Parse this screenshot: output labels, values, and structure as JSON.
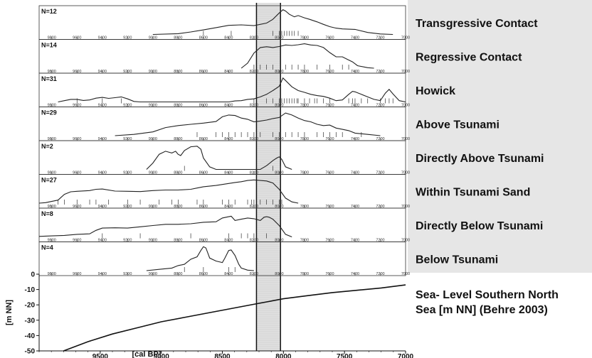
{
  "chart_data": {
    "type": "line",
    "x_reversed": true,
    "highlight_band": {
      "x_from": 8180,
      "x_to": 7990
    },
    "panel_xlim": [
      9900,
      7000
    ],
    "panel_ticks": [
      9800,
      9600,
      9400,
      9200,
      9000,
      8800,
      8600,
      8400,
      8200,
      8000,
      7800,
      7600,
      7400,
      7200,
      7000
    ],
    "panels": [
      {
        "n_label": "N=12",
        "label": "Transgressive Contact",
        "curve": [
          [
            9000,
            0.0
          ],
          [
            8800,
            0.03
          ],
          [
            8700,
            0.1
          ],
          [
            8600,
            0.18
          ],
          [
            8500,
            0.27
          ],
          [
            8400,
            0.36
          ],
          [
            8300,
            0.38
          ],
          [
            8200,
            0.35
          ],
          [
            8100,
            0.45
          ],
          [
            8050,
            0.6
          ],
          [
            8000,
            0.85
          ],
          [
            7970,
            0.98
          ],
          [
            7950,
            0.93
          ],
          [
            7920,
            0.8
          ],
          [
            7880,
            0.7
          ],
          [
            7850,
            0.75
          ],
          [
            7800,
            0.66
          ],
          [
            7760,
            0.6
          ],
          [
            7700,
            0.5
          ],
          [
            7650,
            0.4
          ],
          [
            7600,
            0.31
          ],
          [
            7550,
            0.25
          ],
          [
            7500,
            0.22
          ],
          [
            7400,
            0.2
          ],
          [
            7300,
            0.08
          ],
          [
            7200,
            0.02
          ],
          [
            7100,
            0.0
          ]
        ],
        "rug": [
          8600,
          8380,
          8050,
          8000,
          7980,
          7960,
          7940,
          7920,
          7900,
          7880,
          7850
        ]
      },
      {
        "n_label": "N=14",
        "label": "Regressive Contact",
        "curve": [
          [
            8300,
            0.0
          ],
          [
            8250,
            0.2
          ],
          [
            8200,
            0.6
          ],
          [
            8150,
            0.82
          ],
          [
            8100,
            0.85
          ],
          [
            8050,
            0.82
          ],
          [
            8000,
            0.86
          ],
          [
            7950,
            0.92
          ],
          [
            7900,
            0.9
          ],
          [
            7850,
            0.93
          ],
          [
            7800,
            0.97
          ],
          [
            7750,
            0.92
          ],
          [
            7700,
            0.9
          ],
          [
            7650,
            0.82
          ],
          [
            7600,
            0.62
          ],
          [
            7550,
            0.45
          ],
          [
            7500,
            0.45
          ],
          [
            7460,
            0.35
          ],
          [
            7420,
            0.25
          ],
          [
            7380,
            0.1
          ],
          [
            7300,
            0.02
          ],
          [
            7250,
            0.0
          ]
        ],
        "rug": [
          8200,
          8150,
          8100,
          8050,
          7950,
          7900,
          7850,
          7800,
          7700,
          7600,
          7500,
          7450
        ]
      },
      {
        "n_label": "N=31",
        "label": "Howick",
        "curve": [
          [
            9750,
            0.0
          ],
          [
            9700,
            0.05
          ],
          [
            9650,
            0.1
          ],
          [
            9600,
            0.1
          ],
          [
            9550,
            0.06
          ],
          [
            9500,
            0.08
          ],
          [
            9450,
            0.15
          ],
          [
            9400,
            0.18
          ],
          [
            9350,
            0.14
          ],
          [
            9300,
            0.17
          ],
          [
            9250,
            0.2
          ],
          [
            9200,
            0.12
          ],
          [
            9150,
            0.02
          ],
          [
            9100,
            0.0
          ],
          [
            8400,
            0.0
          ],
          [
            8350,
            0.04
          ],
          [
            8300,
            0.05
          ],
          [
            8250,
            0.1
          ],
          [
            8200,
            0.12
          ],
          [
            8150,
            0.2
          ],
          [
            8100,
            0.3
          ],
          [
            8050,
            0.45
          ],
          [
            8000,
            0.62
          ],
          [
            7970,
            0.95
          ],
          [
            7950,
            0.85
          ],
          [
            7900,
            0.6
          ],
          [
            7850,
            0.45
          ],
          [
            7800,
            0.38
          ],
          [
            7750,
            0.3
          ],
          [
            7700,
            0.25
          ],
          [
            7650,
            0.22
          ],
          [
            7600,
            0.15
          ],
          [
            7550,
            0.05
          ],
          [
            7500,
            0.08
          ],
          [
            7450,
            0.3
          ],
          [
            7420,
            0.42
          ],
          [
            7400,
            0.4
          ],
          [
            7350,
            0.3
          ],
          [
            7300,
            0.2
          ],
          [
            7250,
            0.1
          ],
          [
            7200,
            0.05
          ],
          [
            7160,
            0.35
          ],
          [
            7130,
            0.5
          ],
          [
            7100,
            0.32
          ],
          [
            7050,
            0.05
          ],
          [
            7000,
            0.0
          ]
        ],
        "rug": [
          9600,
          9400,
          9250,
          8200,
          8100,
          8050,
          8000,
          7980,
          7960,
          7940,
          7920,
          7900,
          7880,
          7860,
          7850,
          7800,
          7760,
          7720,
          7700,
          7650,
          7600,
          7450,
          7420,
          7400,
          7350,
          7300,
          7200,
          7160,
          7130,
          7100
        ]
      },
      {
        "n_label": "N=29",
        "label": "Above Tsunami",
        "curve": [
          [
            9300,
            0.0
          ],
          [
            9150,
            0.05
          ],
          [
            9000,
            0.15
          ],
          [
            8900,
            0.32
          ],
          [
            8800,
            0.4
          ],
          [
            8700,
            0.45
          ],
          [
            8600,
            0.5
          ],
          [
            8500,
            0.56
          ],
          [
            8450,
            0.75
          ],
          [
            8400,
            0.82
          ],
          [
            8350,
            0.8
          ],
          [
            8300,
            0.7
          ],
          [
            8250,
            0.65
          ],
          [
            8200,
            0.55
          ],
          [
            8150,
            0.58
          ],
          [
            8100,
            0.62
          ],
          [
            8050,
            0.68
          ],
          [
            8000,
            0.72
          ],
          [
            7950,
            0.9
          ],
          [
            7900,
            0.82
          ],
          [
            7850,
            0.7
          ],
          [
            7800,
            0.6
          ],
          [
            7750,
            0.55
          ],
          [
            7700,
            0.45
          ],
          [
            7650,
            0.4
          ],
          [
            7600,
            0.42
          ],
          [
            7550,
            0.3
          ],
          [
            7500,
            0.25
          ],
          [
            7450,
            0.2
          ],
          [
            7400,
            0.1
          ],
          [
            7300,
            0.05
          ],
          [
            7200,
            0.0
          ]
        ],
        "rug": [
          8650,
          8500,
          8450,
          8400,
          8350,
          8300,
          8250,
          8200,
          8150,
          8050,
          8000,
          7950,
          7900,
          7850,
          7800,
          7700,
          7650,
          7600,
          7550,
          7500,
          7350
        ]
      },
      {
        "n_label": "N=2",
        "label": "Directly Above Tsunami",
        "curve": [
          [
            9050,
            0.0
          ],
          [
            9000,
            0.25
          ],
          [
            8950,
            0.6
          ],
          [
            8900,
            0.72
          ],
          [
            8850,
            0.65
          ],
          [
            8820,
            0.72
          ],
          [
            8800,
            0.6
          ],
          [
            8780,
            0.55
          ],
          [
            8750,
            0.75
          ],
          [
            8700,
            0.9
          ],
          [
            8650,
            0.92
          ],
          [
            8620,
            0.8
          ],
          [
            8600,
            0.45
          ],
          [
            8550,
            0.1
          ],
          [
            8500,
            0.0
          ],
          [
            8150,
            0.0
          ],
          [
            8100,
            0.15
          ],
          [
            8050,
            0.35
          ],
          [
            8020,
            0.45
          ],
          [
            8000,
            0.5
          ],
          [
            7980,
            0.4
          ],
          [
            7950,
            0.1
          ],
          [
            7900,
            0.0
          ]
        ],
        "rug": [
          8750,
          8050,
          7990
        ]
      },
      {
        "n_label": "N=27",
        "label": "Within Tsunami Sand",
        "curve": [
          [
            9900,
            0.0
          ],
          [
            9850,
            0.02
          ],
          [
            9750,
            0.12
          ],
          [
            9700,
            0.35
          ],
          [
            9650,
            0.45
          ],
          [
            9600,
            0.47
          ],
          [
            9500,
            0.5
          ],
          [
            9450,
            0.55
          ],
          [
            9400,
            0.56
          ],
          [
            9300,
            0.48
          ],
          [
            9200,
            0.47
          ],
          [
            9100,
            0.46
          ],
          [
            9000,
            0.5
          ],
          [
            8900,
            0.52
          ],
          [
            8800,
            0.52
          ],
          [
            8700,
            0.55
          ],
          [
            8650,
            0.6
          ],
          [
            8600,
            0.65
          ],
          [
            8500,
            0.7
          ],
          [
            8400,
            0.78
          ],
          [
            8350,
            0.82
          ],
          [
            8300,
            0.85
          ],
          [
            8250,
            0.9
          ],
          [
            8200,
            0.92
          ],
          [
            8150,
            0.9
          ],
          [
            8100,
            0.88
          ],
          [
            8050,
            0.8
          ],
          [
            8000,
            0.55
          ],
          [
            7950,
            0.2
          ],
          [
            7900,
            0.05
          ],
          [
            7850,
            0.0
          ]
        ],
        "rug": [
          9750,
          9700,
          9600,
          9500,
          9450,
          9350,
          9200,
          9100,
          8950,
          8850,
          8800,
          8650,
          8600,
          8450,
          8400,
          8350,
          8250,
          8220,
          8200,
          8150,
          8100,
          8050,
          8000,
          7980
        ]
      },
      {
        "n_label": "N=8",
        "label": "Directly Below Tsunami",
        "curve": [
          [
            9900,
            0.02
          ],
          [
            9800,
            0.04
          ],
          [
            9700,
            0.06
          ],
          [
            9600,
            0.1
          ],
          [
            9500,
            0.12
          ],
          [
            9450,
            0.26
          ],
          [
            9400,
            0.35
          ],
          [
            9300,
            0.36
          ],
          [
            9200,
            0.35
          ],
          [
            9100,
            0.4
          ],
          [
            9000,
            0.45
          ],
          [
            8900,
            0.5
          ],
          [
            8800,
            0.5
          ],
          [
            8700,
            0.52
          ],
          [
            8600,
            0.58
          ],
          [
            8500,
            0.6
          ],
          [
            8450,
            0.75
          ],
          [
            8400,
            0.8
          ],
          [
            8380,
            0.82
          ],
          [
            8350,
            0.65
          ],
          [
            8300,
            0.7
          ],
          [
            8250,
            0.75
          ],
          [
            8200,
            0.72
          ],
          [
            8150,
            0.65
          ],
          [
            8120,
            0.78
          ],
          [
            8100,
            0.8
          ],
          [
            8080,
            0.78
          ],
          [
            8050,
            0.7
          ],
          [
            8000,
            0.45
          ],
          [
            7950,
            0.1
          ],
          [
            7900,
            0.0
          ]
        ],
        "rug": [
          9400,
          9100,
          8700,
          8400,
          8300,
          8250,
          8200,
          8100
        ]
      },
      {
        "n_label": "N=4",
        "label": "Below Tsunami",
        "curve": [
          [
            9050,
            0.0
          ],
          [
            8950,
            0.05
          ],
          [
            8850,
            0.1
          ],
          [
            8800,
            0.2
          ],
          [
            8750,
            0.25
          ],
          [
            8700,
            0.45
          ],
          [
            8650,
            0.55
          ],
          [
            8620,
            0.8
          ],
          [
            8600,
            0.95
          ],
          [
            8580,
            0.9
          ],
          [
            8550,
            0.5
          ],
          [
            8500,
            0.38
          ],
          [
            8450,
            0.32
          ],
          [
            8430,
            0.5
          ],
          [
            8400,
            0.8
          ],
          [
            8380,
            0.82
          ],
          [
            8350,
            0.6
          ],
          [
            8320,
            0.25
          ],
          [
            8300,
            0.1
          ],
          [
            8250,
            0.02
          ],
          [
            8200,
            0.0
          ]
        ],
        "rug": [
          8750,
          8600,
          8400,
          8350
        ]
      }
    ],
    "sea_level": {
      "label": "Sea- Level Southern North Sea [m NN] (Behre 2003)",
      "ylabel": "[m NN]",
      "xlabel": "[cal BP]",
      "xlim": [
        10000,
        7000
      ],
      "ylim": [
        -50,
        0
      ],
      "xticks": [
        9500,
        9000,
        8500,
        8000,
        7500,
        7000
      ],
      "yticks": [
        0,
        -10,
        -20,
        -30,
        -40,
        -50
      ],
      "curve": [
        [
          9800,
          -50
        ],
        [
          9600,
          -44
        ],
        [
          9400,
          -39
        ],
        [
          9200,
          -35
        ],
        [
          9000,
          -31
        ],
        [
          8800,
          -28
        ],
        [
          8600,
          -25
        ],
        [
          8400,
          -22
        ],
        [
          8200,
          -19
        ],
        [
          8000,
          -16
        ],
        [
          7800,
          -14
        ],
        [
          7600,
          -12
        ],
        [
          7400,
          -10.5
        ],
        [
          7200,
          -9
        ],
        [
          7000,
          -7
        ]
      ]
    }
  }
}
